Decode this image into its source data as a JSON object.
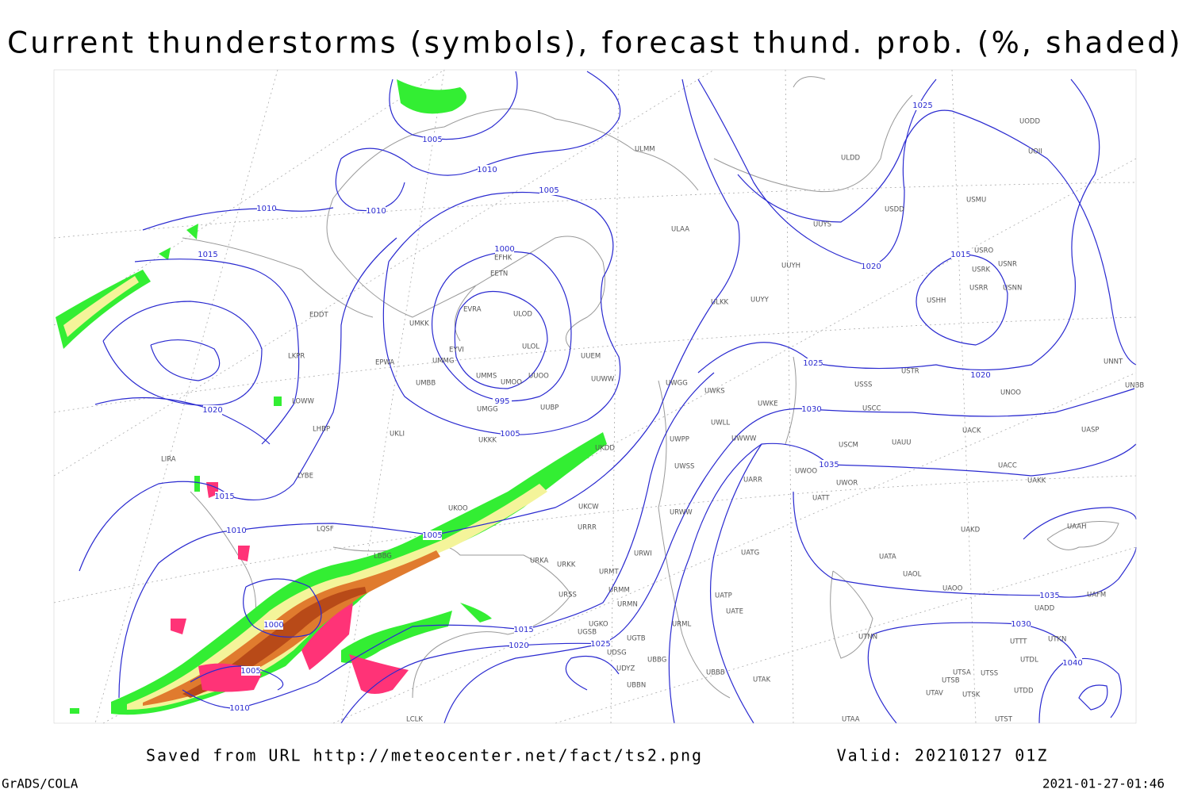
{
  "title": "Current thunderstorms (symbols), forecast thund. prob. (%, shaded)",
  "footer": {
    "source": "Saved from URL http://meteocenter.net/fact/ts2.png",
    "valid": "Valid: 20210127 01Z",
    "software": "GrADS/COLA",
    "timestamp": "2021-01-27-01:46"
  },
  "isobar_labels": [
    "1005",
    "1010",
    "1010",
    "1010",
    "1005",
    "1015",
    "1000",
    "995",
    "1005",
    "1020",
    "1015",
    "1010",
    "1005",
    "1000",
    "1005",
    "1010",
    "1015",
    "1020",
    "1025",
    "1025",
    "1020",
    "1015",
    "1025",
    "1030",
    "1035",
    "1020",
    "1035",
    "1030",
    "1040"
  ],
  "stations": [
    "ULMM",
    "ULDD",
    "UODD",
    "UOII",
    "USDD",
    "USMU",
    "UUYS",
    "ULAA",
    "UUYH",
    "USRO",
    "USRK",
    "USNR",
    "USRR",
    "USNN",
    "USHH",
    "ULKK",
    "UUYY",
    "EDDT",
    "EFHK",
    "EETN",
    "EVRA",
    "ULOD",
    "UMKK",
    "ULOL",
    "EYVI",
    "UUEM",
    "LKPR",
    "EPWA",
    "UMMG",
    "UMMS",
    "UMOO",
    "UUOO",
    "UUWW",
    "UMBB",
    "UWGG",
    "UWKS",
    "USTR",
    "USSS",
    "UNOO",
    "UNNT",
    "UNBB",
    "UWKE",
    "LOWW",
    "UMGG",
    "UUBP",
    "USCC",
    "LHBP",
    "UKLI",
    "UWWW",
    "UWLL",
    "USCM",
    "UAUU",
    "UACK",
    "UASP",
    "LIRA",
    "UKKK",
    "UKDD",
    "LYBE",
    "UWPP",
    "UWSS",
    "UWOO",
    "UWOR",
    "UACC",
    "UAKK",
    "UARR",
    "UKOO",
    "UKCW",
    "URWW",
    "URRR",
    "LQSF",
    "UATT",
    "UAKD",
    "UAAH",
    "LBBG",
    "URKA",
    "URKK",
    "URWI",
    "UATG",
    "UATA",
    "URMT",
    "UAOL",
    "UAOO",
    "URMM",
    "URMN",
    "URSS",
    "UATP",
    "UATE",
    "UAFM",
    "UADD",
    "UGKO",
    "UGSB",
    "UGTB",
    "URML",
    "UTNN",
    "UTTT",
    "UTKN",
    "UDSG",
    "UBBG",
    "UTDL",
    "UDYZ",
    "UBBB",
    "UTAK",
    "UTSS",
    "UTSA",
    "UTSB",
    "UBBN",
    "UTAV",
    "UTSK",
    "UTDD",
    "LCLK",
    "UTAA",
    "UTST"
  ]
}
